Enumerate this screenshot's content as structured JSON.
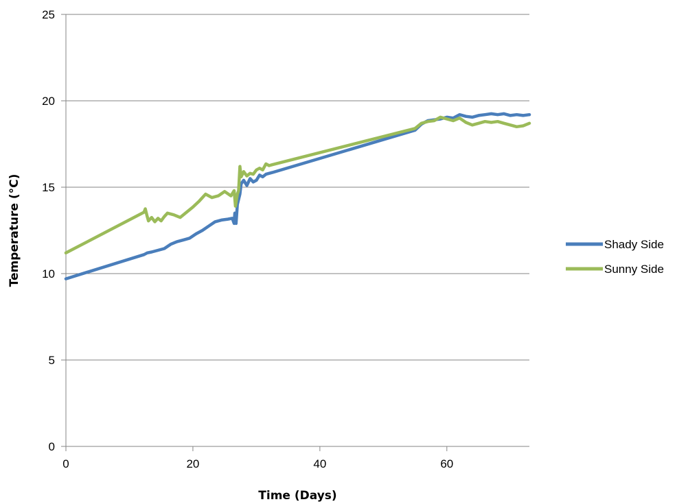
{
  "chart_data": {
    "type": "line",
    "xlabel": "Time (Days)",
    "ylabel": "Temperature (°C)",
    "xlim": [
      0,
      73
    ],
    "ylim": [
      0,
      25
    ],
    "xticks": [
      0,
      20,
      40,
      60
    ],
    "yticks": [
      0,
      5,
      10,
      15,
      20,
      25
    ],
    "grid": "horizontal",
    "legend_position": "right",
    "series": [
      {
        "name": "Shady Side",
        "color": "#4a7ebb",
        "x": [
          0,
          12.3,
          12.8,
          13.5,
          14.5,
          15.5,
          16.5,
          17.5,
          18.5,
          19.5,
          20.5,
          21.5,
          22.5,
          23.5,
          24.5,
          25.5,
          26.2,
          26.5,
          26.6,
          26.8,
          27.0,
          27.4,
          27.6,
          28.0,
          28.5,
          29.0,
          29.5,
          30.0,
          30.5,
          31.0,
          31.5,
          32.0,
          32.5,
          55.0,
          56.0,
          57.0,
          58.0,
          59.0,
          60.0,
          61.0,
          62.0,
          63.0,
          64.0,
          65.0,
          66.0,
          67.0,
          68.0,
          69.0,
          70.0,
          71.0,
          72.0,
          73.0
        ],
        "values": [
          9.7,
          11.1,
          11.2,
          11.25,
          11.35,
          11.45,
          11.7,
          11.85,
          11.95,
          12.05,
          12.3,
          12.5,
          12.75,
          13.0,
          13.1,
          13.15,
          13.2,
          12.9,
          13.5,
          12.9,
          14.0,
          14.6,
          15.2,
          15.4,
          15.1,
          15.5,
          15.3,
          15.4,
          15.7,
          15.6,
          15.75,
          15.8,
          15.85,
          18.3,
          18.65,
          18.85,
          18.9,
          18.95,
          19.05,
          19.0,
          19.2,
          19.1,
          19.05,
          19.15,
          19.2,
          19.25,
          19.2,
          19.25,
          19.15,
          19.2,
          19.15,
          19.2
        ]
      },
      {
        "name": "Sunny Side",
        "color": "#9bbb59",
        "x": [
          0,
          12.3,
          12.5,
          12.8,
          13.0,
          13.5,
          14.0,
          14.5,
          15.0,
          15.5,
          16.0,
          17.0,
          18.0,
          19.0,
          20.0,
          21.0,
          22.0,
          23.0,
          24.0,
          25.0,
          26.0,
          26.5,
          26.7,
          27.0,
          27.2,
          27.4,
          27.6,
          28.0,
          28.5,
          29.0,
          29.5,
          30.0,
          30.5,
          31.0,
          31.5,
          32.0,
          32.5,
          55.0,
          56.0,
          57.0,
          58.0,
          59.0,
          60.0,
          61.0,
          62.0,
          63.0,
          64.0,
          65.0,
          66.0,
          67.0,
          68.0,
          69.0,
          70.0,
          71.0,
          72.0,
          73.0
        ],
        "values": [
          11.2,
          13.55,
          13.75,
          13.3,
          13.05,
          13.25,
          13.0,
          13.2,
          13.05,
          13.3,
          13.5,
          13.4,
          13.25,
          13.55,
          13.85,
          14.2,
          14.6,
          14.4,
          14.5,
          14.75,
          14.5,
          14.8,
          13.9,
          14.6,
          14.8,
          16.2,
          15.6,
          15.9,
          15.65,
          15.8,
          15.75,
          16.0,
          16.1,
          16.0,
          16.35,
          16.25,
          16.3,
          18.4,
          18.7,
          18.8,
          18.85,
          19.05,
          18.95,
          18.85,
          19.0,
          18.75,
          18.6,
          18.7,
          18.8,
          18.75,
          18.8,
          18.7,
          18.6,
          18.5,
          18.55,
          18.7
        ]
      }
    ]
  }
}
